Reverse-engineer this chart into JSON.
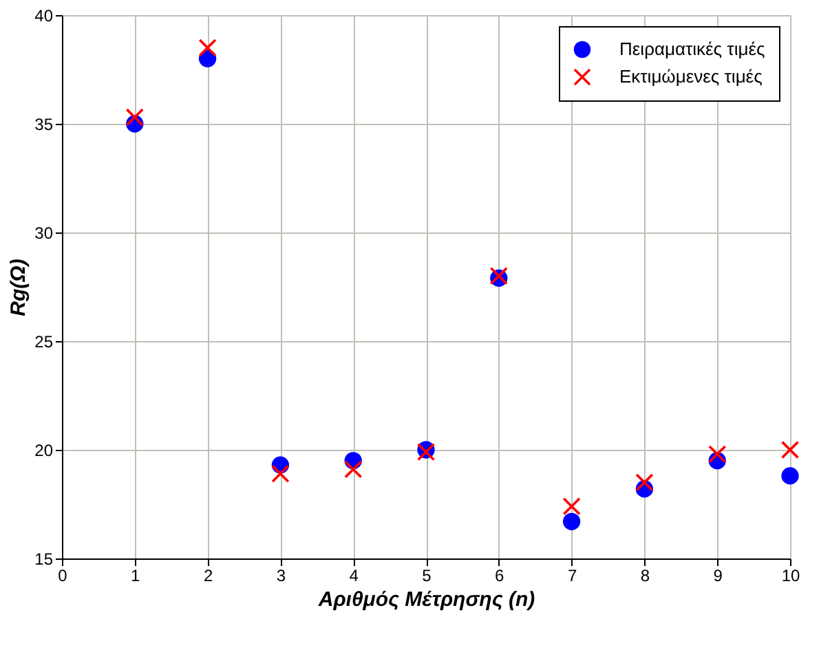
{
  "chart_data": {
    "type": "scatter",
    "xlabel": "Αριθμός Μέτρησης (n)",
    "ylabel": "Rg(Ω)",
    "x": [
      1,
      2,
      3,
      4,
      5,
      6,
      7,
      8,
      9,
      10
    ],
    "series": [
      {
        "name": "Πειραματικές τιμές",
        "color": "#0000ff",
        "marker": "circle",
        "values": [
          35.0,
          38.0,
          19.3,
          19.5,
          20.0,
          27.9,
          16.7,
          18.2,
          19.5,
          18.8
        ]
      },
      {
        "name": "Εκτιμώμενες τιμές",
        "color": "#ff0000",
        "marker": "cross",
        "values": [
          35.3,
          38.5,
          18.9,
          19.1,
          19.9,
          28.0,
          17.4,
          18.5,
          19.8,
          20.0
        ]
      }
    ],
    "xlim": [
      0,
      10
    ],
    "xticks": [
      0,
      1,
      2,
      3,
      4,
      5,
      6,
      7,
      8,
      9,
      10
    ],
    "ylim": [
      15,
      40
    ],
    "yticks": [
      15,
      20,
      25,
      30,
      35,
      40
    ],
    "grid": true,
    "legend": "top right"
  }
}
